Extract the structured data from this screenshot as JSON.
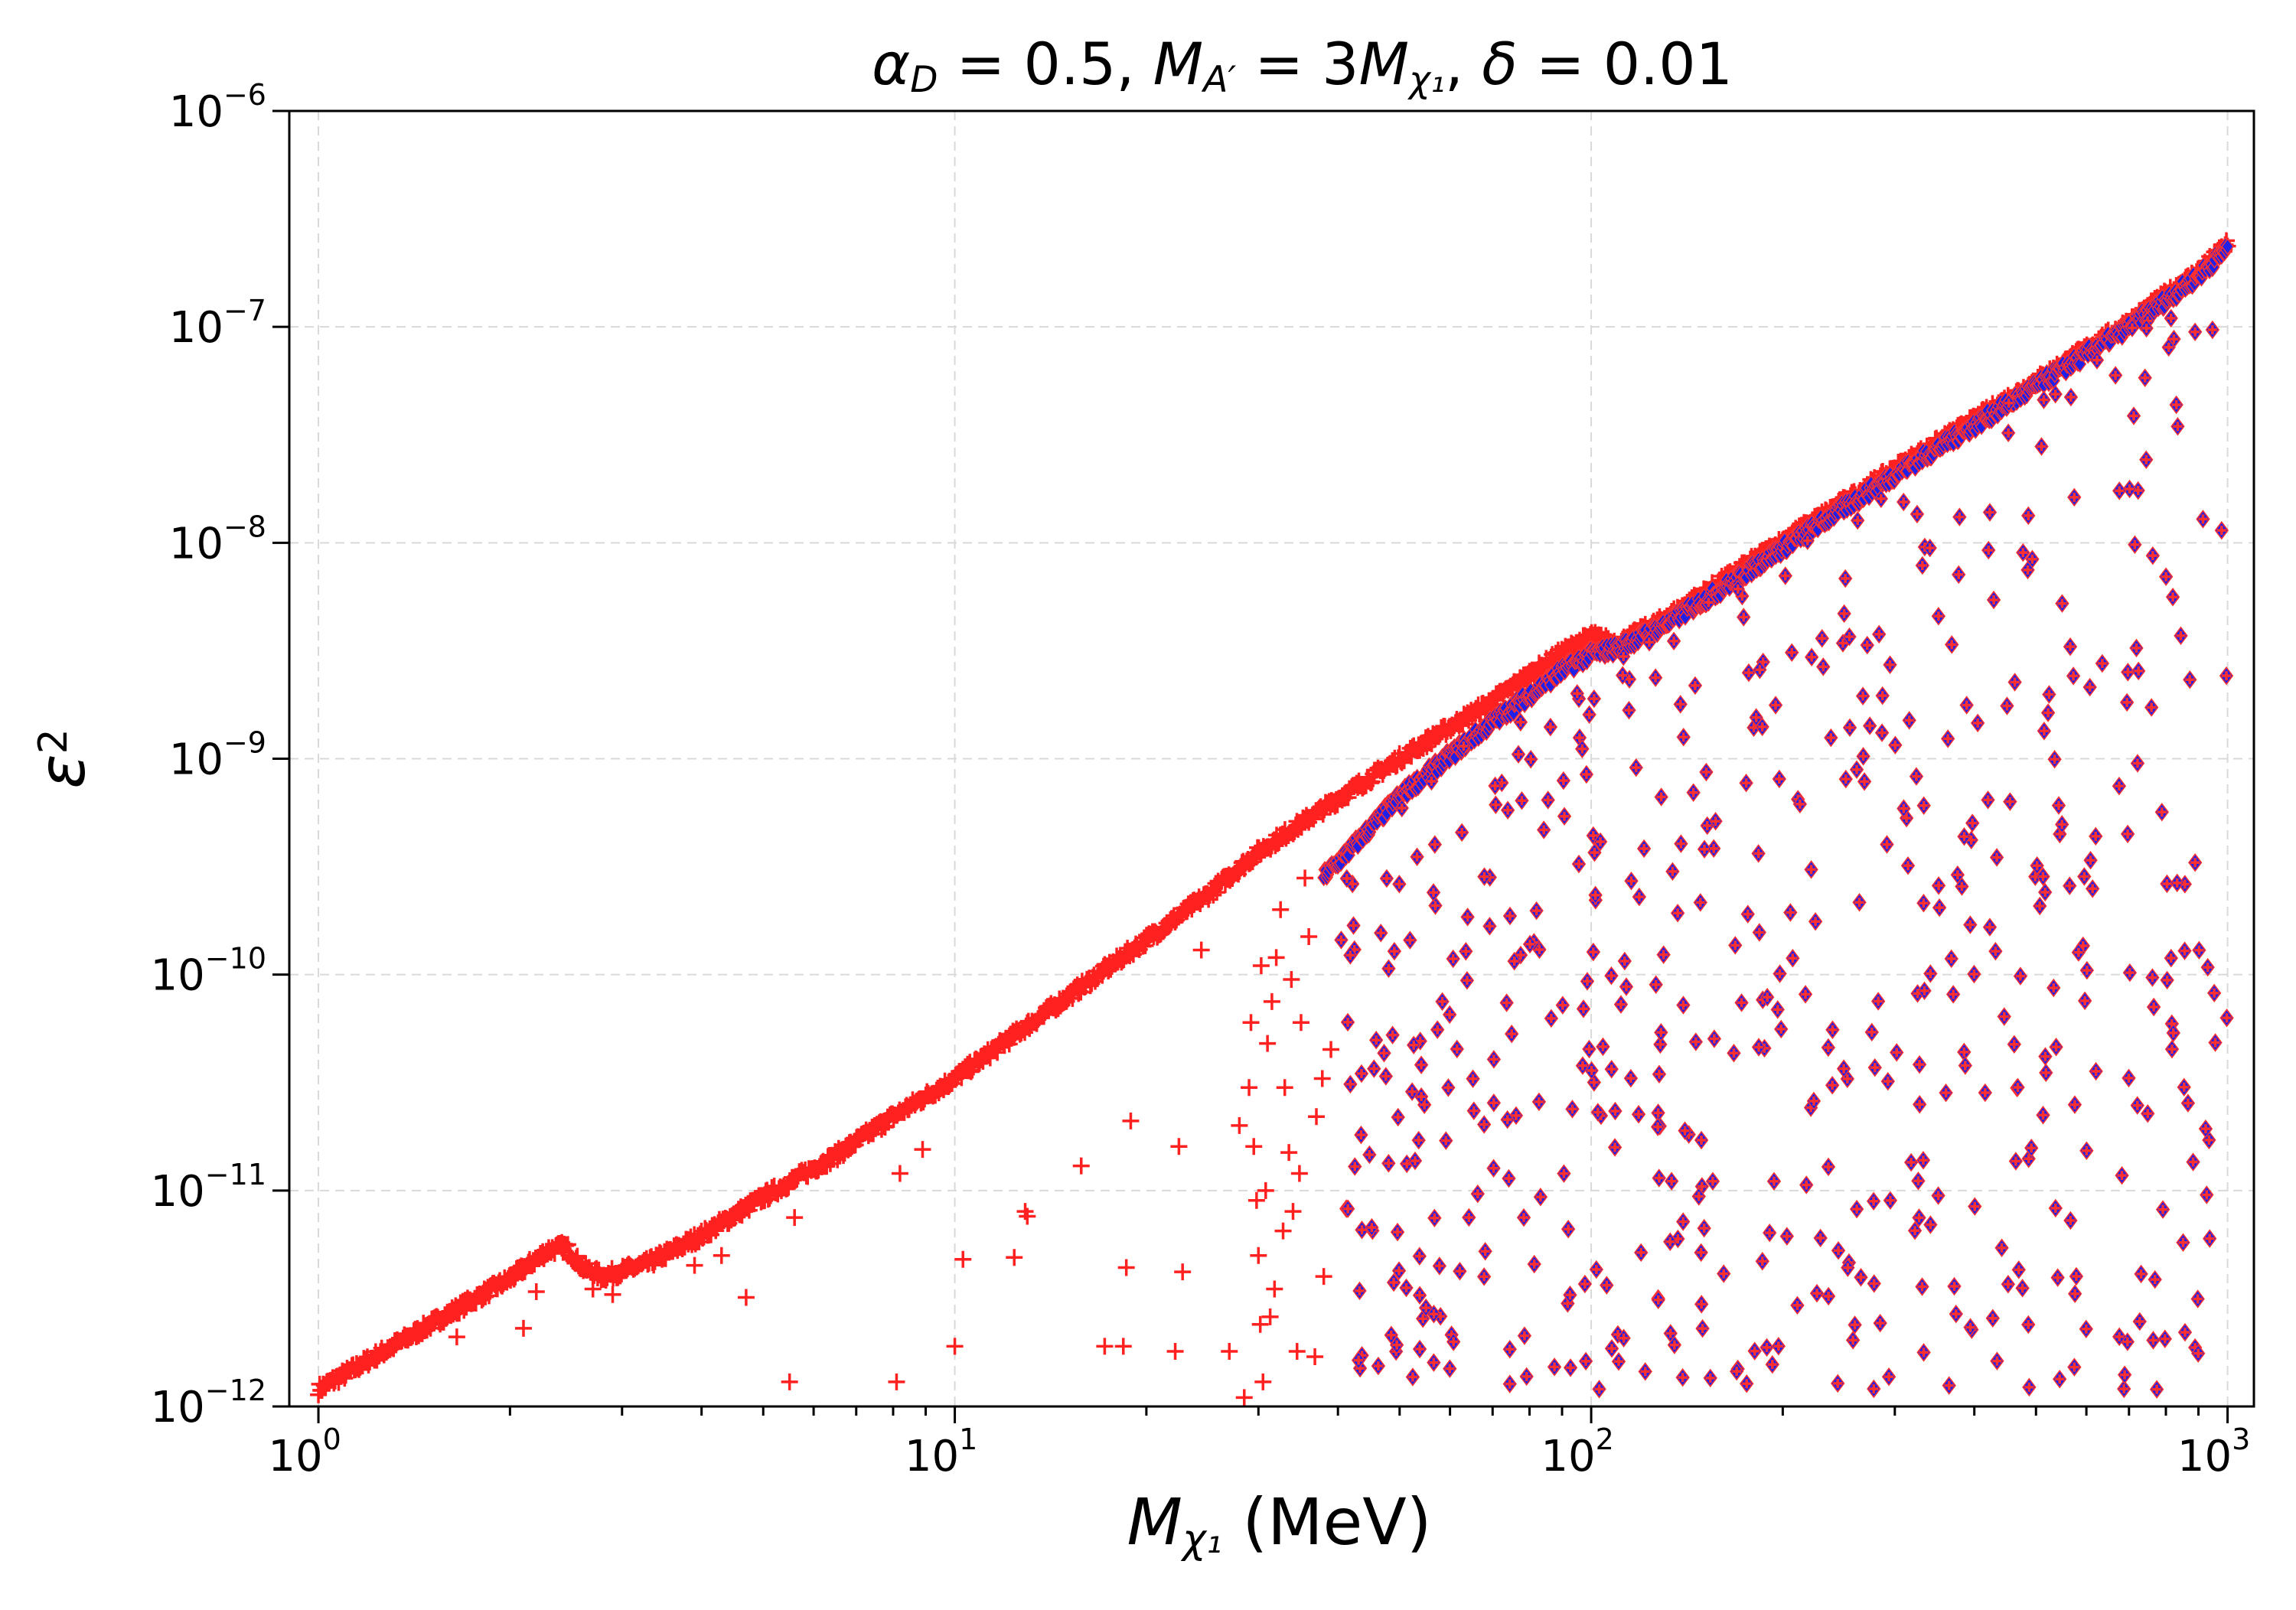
{
  "chart_data": {
    "type": "scatter",
    "title": {
      "parts": [
        {
          "t": "α",
          "italic": true
        },
        {
          "t": "D",
          "sub": true,
          "italic": true
        },
        {
          "t": " = 0.5, "
        },
        {
          "t": "M",
          "italic": true
        },
        {
          "t": "A′",
          "sub": true,
          "italic": true
        },
        {
          "t": " = 3"
        },
        {
          "t": "M",
          "italic": true
        },
        {
          "t": "χ₁",
          "sub": true,
          "italic": true
        },
        {
          "t": ", "
        },
        {
          "t": "δ",
          "italic": true
        },
        {
          "t": " = 0.01"
        }
      ]
    },
    "xlabel": {
      "parts": [
        {
          "t": "M",
          "italic": true
        },
        {
          "t": "χ₁",
          "sub": true,
          "italic": true
        },
        {
          "t": " (MeV)"
        }
      ]
    },
    "ylabel": {
      "parts": [
        {
          "t": "ε",
          "italic": true
        },
        {
          "t": "2",
          "sup": true
        }
      ]
    },
    "x_scale": "log",
    "y_scale": "log",
    "xlim": [
      0.9,
      1100
    ],
    "ylim": [
      1e-12,
      1e-06
    ],
    "grid": true,
    "x_ticks": [
      {
        "base": "10",
        "exp": "0",
        "value": 1
      },
      {
        "base": "10",
        "exp": "1",
        "value": 10
      },
      {
        "base": "10",
        "exp": "2",
        "value": 100
      },
      {
        "base": "10",
        "exp": "3",
        "value": 1000
      }
    ],
    "y_ticks": [
      {
        "base": "10",
        "exp": "−12",
        "value": 1e-12
      },
      {
        "base": "10",
        "exp": "−11",
        "value": 1e-11
      },
      {
        "base": "10",
        "exp": "−10",
        "value": 1e-10
      },
      {
        "base": "10",
        "exp": "−9",
        "value": 1e-09
      },
      {
        "base": "10",
        "exp": "−8",
        "value": 1e-08
      },
      {
        "base": "10",
        "exp": "−7",
        "value": 1e-07
      },
      {
        "base": "10",
        "exp": "−6",
        "value": 1e-06
      }
    ],
    "series": [
      {
        "marker": "plus",
        "color": "#ff2020",
        "boundary": [
          [
            1.0,
            1.2e-12
          ],
          [
            1.5,
            2.4e-12
          ],
          [
            2.0,
            3.9e-12
          ],
          [
            2.3,
            5.3e-12
          ],
          [
            2.45,
            5.5e-12
          ],
          [
            2.6,
            4.4e-12
          ],
          [
            2.8,
            4e-12
          ],
          [
            3.3,
            4.6e-12
          ],
          [
            4.0,
            6.2e-12
          ],
          [
            5.0,
            9.3e-12
          ],
          [
            6.5,
            1.45e-11
          ],
          [
            8.0,
            2.2e-11
          ],
          [
            10,
            3.3e-11
          ],
          [
            13,
            5.8e-11
          ],
          [
            16,
            9e-11
          ],
          [
            20,
            1.45e-10
          ],
          [
            25,
            2.35e-10
          ],
          [
            30,
            3.7e-10
          ],
          [
            40,
            6.5e-10
          ],
          [
            50,
            1e-09
          ],
          [
            60,
            1.4e-09
          ],
          [
            70,
            1.85e-09
          ],
          [
            80,
            2.45e-09
          ],
          [
            90,
            3.1e-09
          ],
          [
            100,
            3.7e-09
          ],
          [
            110,
            3.4e-09
          ],
          [
            130,
            4.4e-09
          ],
          [
            160,
            6.6e-09
          ],
          [
            200,
            1.02e-08
          ],
          [
            250,
            1.55e-08
          ],
          [
            300,
            2.2e-08
          ],
          [
            400,
            3.7e-08
          ],
          [
            500,
            5.6e-08
          ],
          [
            600,
            7.9e-08
          ],
          [
            700,
            1.05e-07
          ],
          [
            800,
            1.4e-07
          ],
          [
            900,
            1.8e-07
          ],
          [
            1000,
            2.4e-07
          ]
        ],
        "scatter": [
          [
            1.65,
            2.1e-12
          ],
          [
            2.1,
            2.3e-12
          ],
          [
            2.2,
            3.4e-12
          ],
          [
            2.7,
            3.5e-12
          ],
          [
            2.9,
            3.3e-12
          ],
          [
            3.9,
            4.5e-12
          ],
          [
            4.3,
            5e-12
          ],
          [
            4.7,
            3.2e-12
          ],
          [
            5.5,
            1.3e-12
          ],
          [
            5.6,
            7.5e-12
          ],
          [
            8.1,
            1.3e-12
          ],
          [
            8.2,
            1.2e-11
          ],
          [
            8.9,
            1.55e-11
          ],
          [
            10.0,
            1.9e-12
          ],
          [
            10.3,
            4.8e-12
          ],
          [
            12.4,
            4.9e-12
          ],
          [
            12.9,
            8e-12
          ],
          [
            13.0,
            7.6e-12
          ],
          [
            15.8,
            1.3e-11
          ],
          [
            17.2,
            1.9e-12
          ],
          [
            18.4,
            1.9e-12
          ],
          [
            18.6,
            4.4e-12
          ],
          [
            18.9,
            2.1e-11
          ],
          [
            22.2,
            1.8e-12
          ],
          [
            22.5,
            1.6e-11
          ],
          [
            22.8,
            4.2e-12
          ],
          [
            24.4,
            1.3e-10
          ],
          [
            27.0,
            1.8e-12
          ],
          [
            28.0,
            2e-11
          ],
          [
            28.5,
            1.1e-12
          ],
          [
            29.0,
            3e-11
          ],
          [
            29.5,
            1.6e-11
          ],
          [
            29.8,
            9e-12
          ],
          [
            30.0,
            5e-12
          ],
          [
            30.2,
            2.4e-12
          ],
          [
            30.5,
            1.3e-12
          ],
          [
            31.0,
            4.8e-11
          ],
          [
            31.5,
            7.5e-11
          ],
          [
            32.0,
            1.2e-10
          ],
          [
            32.5,
            2e-10
          ],
          [
            33.0,
            3e-11
          ],
          [
            33.5,
            1.5e-11
          ],
          [
            34.0,
            8e-12
          ],
          [
            34.5,
            1.8e-12
          ],
          [
            35.0,
            6e-11
          ],
          [
            36.0,
            1.5e-10
          ],
          [
            37.0,
            2.2e-11
          ],
          [
            38.0,
            4e-12
          ],
          [
            39.0,
            4.5e-11
          ],
          [
            35.5,
            2.8e-10
          ],
          [
            30.8,
            1e-11
          ],
          [
            31.8,
            3.5e-12
          ],
          [
            32.8,
            6.5e-12
          ],
          [
            29.2,
            6e-11
          ],
          [
            30.3,
            1.1e-10
          ],
          [
            34.8,
            1.2e-11
          ],
          [
            33.8,
            9.5e-11
          ],
          [
            36.8,
            1.7e-12
          ],
          [
            37.8,
            3.3e-11
          ],
          [
            31.3,
            2.6e-12
          ]
        ]
      },
      {
        "marker": "diamond",
        "color": "#2020e8",
        "edge_color": "#ff3030",
        "boundary": [
          [
            38,
            2.9e-10
          ],
          [
            42,
            3.9e-10
          ],
          [
            50,
            6.8e-10
          ],
          [
            60,
            1.05e-09
          ],
          [
            70,
            1.5e-09
          ],
          [
            80,
            2e-09
          ],
          [
            90,
            2.6e-09
          ],
          [
            100,
            3.1e-09
          ],
          [
            110,
            3.3e-09
          ],
          [
            130,
            4.2e-09
          ],
          [
            160,
            6.2e-09
          ],
          [
            200,
            9.6e-09
          ],
          [
            250,
            1.48e-08
          ],
          [
            300,
            2.1e-08
          ],
          [
            400,
            3.55e-08
          ],
          [
            500,
            5.4e-08
          ],
          [
            600,
            7.6e-08
          ],
          [
            700,
            1.02e-07
          ],
          [
            800,
            1.35e-07
          ],
          [
            900,
            1.75e-07
          ],
          [
            1000,
            2.35e-07
          ]
        ],
        "scatter_region": {
          "x_min": 40,
          "x_max": 1000,
          "y_min": 1.2e-12,
          "count": 560,
          "seed": 7
        }
      }
    ]
  }
}
